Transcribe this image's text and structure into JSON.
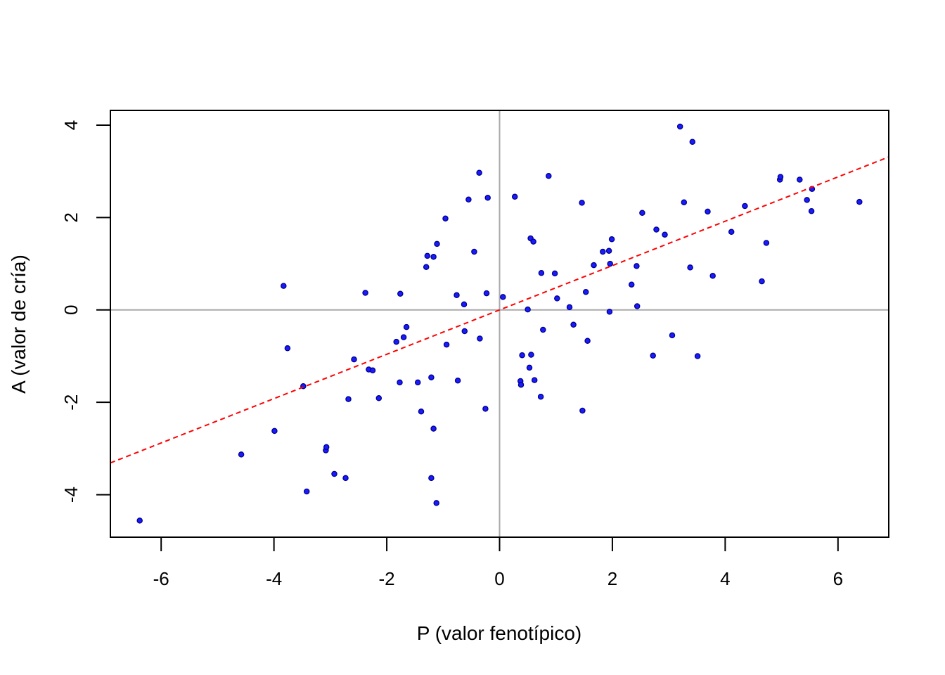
{
  "chart_data": {
    "type": "scatter",
    "title": "",
    "xlabel": "P (valor fenotípico)",
    "ylabel": "A (valor de cría)",
    "xlim": [
      -6.9,
      6.9
    ],
    "ylim": [
      -4.92,
      4.32
    ],
    "xticks": [
      -6,
      -4,
      -2,
      0,
      2,
      4,
      6
    ],
    "yticks": [
      -4,
      -2,
      0,
      2,
      4
    ],
    "grid": false,
    "reference_lines": {
      "vertical_x": 0,
      "horizontal_y": 0,
      "color": "#aaaaaa"
    },
    "regression_line": {
      "intercept": 0.0,
      "slope": 0.48,
      "color": "#ff0000",
      "style": "dashed"
    },
    "point_fill": "#1a1aff",
    "point_stroke": "#00008b",
    "series": [
      {
        "x": [
          -6.38,
          -4.58,
          -3.99,
          -3.83,
          -3.76,
          -3.48,
          -3.42,
          -3.08,
          -3.07,
          -2.93,
          -2.73,
          -2.68,
          -2.58,
          -2.38,
          -2.32,
          -2.25,
          -2.14,
          -1.83,
          -1.77,
          -1.76,
          -1.7,
          -1.65,
          -1.45,
          -1.39,
          -1.3,
          -1.28,
          -1.21,
          -1.21,
          -1.17,
          -1.17,
          -1.12,
          -1.11,
          -0.96,
          -0.94,
          -0.76,
          -0.74,
          -0.63,
          -0.62,
          -0.55,
          -0.45,
          -0.36,
          -0.35,
          -0.25,
          -0.23,
          -0.21,
          0.06,
          0.27,
          0.37,
          0.38,
          0.4,
          0.5,
          0.53,
          0.55,
          0.56,
          0.6,
          0.62,
          0.73,
          0.74,
          0.77,
          0.87,
          0.98,
          1.02,
          1.24,
          1.31,
          1.46,
          1.47,
          1.53,
          1.56,
          1.67,
          1.83,
          1.94,
          1.95,
          1.96,
          1.99,
          2.34,
          2.43,
          2.44,
          2.53,
          2.72,
          2.78,
          2.93,
          3.06,
          3.2,
          3.27,
          3.38,
          3.42,
          3.51,
          3.69,
          3.78,
          4.11,
          4.35,
          4.65,
          4.73,
          4.97,
          4.98,
          5.32,
          5.45,
          5.53,
          5.54,
          6.38
        ],
        "y": [
          -4.56,
          -3.13,
          -2.62,
          0.52,
          -0.83,
          -1.65,
          -3.93,
          -3.04,
          -2.97,
          -3.55,
          -3.64,
          -1.93,
          -1.07,
          0.37,
          -1.29,
          -1.31,
          -1.91,
          -0.69,
          -1.57,
          0.35,
          -0.59,
          -0.37,
          -1.57,
          -2.2,
          0.93,
          1.17,
          -1.46,
          -3.64,
          -2.57,
          1.15,
          -4.18,
          1.43,
          1.98,
          -0.75,
          0.32,
          -1.53,
          0.12,
          -0.46,
          2.39,
          1.26,
          2.97,
          -0.62,
          -2.14,
          0.36,
          2.43,
          0.28,
          2.45,
          -1.54,
          -1.62,
          -0.98,
          0.01,
          -1.25,
          1.55,
          -0.97,
          1.48,
          -1.52,
          -1.88,
          0.8,
          -0.43,
          2.9,
          0.79,
          0.25,
          0.06,
          -0.32,
          2.32,
          -2.18,
          0.39,
          -0.67,
          0.97,
          1.26,
          1.28,
          -0.04,
          1.0,
          1.53,
          0.55,
          0.95,
          0.08,
          2.1,
          -0.99,
          1.74,
          1.63,
          -0.55,
          3.97,
          2.33,
          0.92,
          3.64,
          -1.0,
          2.13,
          0.74,
          1.69,
          2.25,
          0.62,
          1.45,
          2.82,
          2.88,
          2.82,
          2.38,
          2.14,
          2.62,
          2.34
        ]
      }
    ]
  }
}
